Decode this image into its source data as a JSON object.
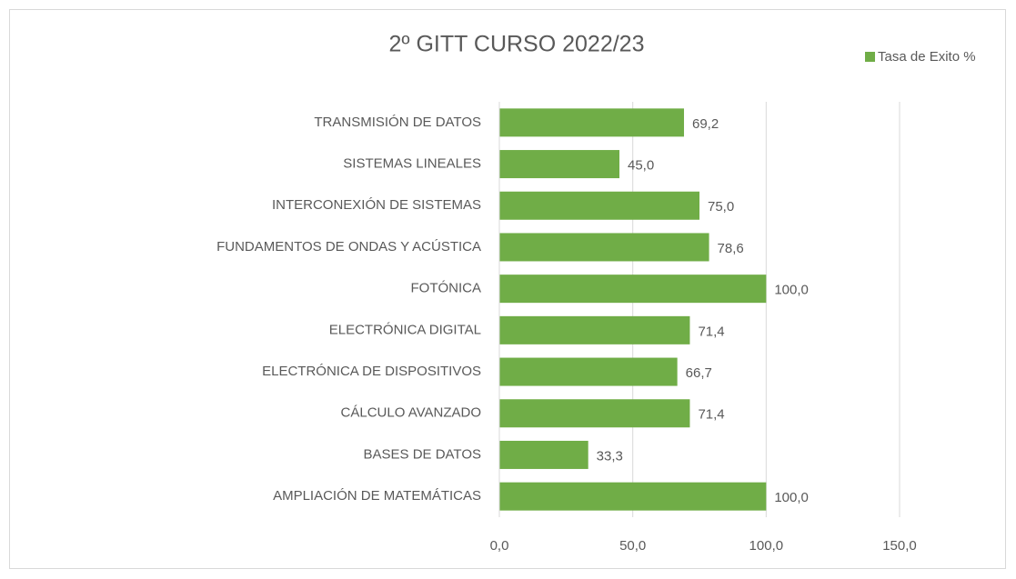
{
  "chart_data": {
    "type": "bar",
    "orientation": "horizontal",
    "title": "2º GITT CURSO 2022/23",
    "categories": [
      "TRANSMISIÓN DE DATOS",
      "SISTEMAS LINEALES",
      "INTERCONEXIÓN DE SISTEMAS",
      "FUNDAMENTOS DE ONDAS Y ACÚSTICA",
      "FOTÓNICA",
      "ELECTRÓNICA DIGITAL",
      "ELECTRÓNICA DE DISPOSITIVOS",
      "CÁLCULO AVANZADO",
      "BASES DE DATOS",
      "AMPLIACIÓN DE MATEMÁTICAS"
    ],
    "series": [
      {
        "name": "Tasa de Exito %",
        "color": "#70ad47",
        "values": [
          69.2,
          45.0,
          75.0,
          78.6,
          100.0,
          71.4,
          66.7,
          71.4,
          33.3,
          100.0
        ],
        "value_labels": [
          "69,2",
          "45,0",
          "75,0",
          "78,6",
          "100,0",
          "71,4",
          "66,7",
          "71,4",
          "33,3",
          "100,0"
        ]
      }
    ],
    "xlim": [
      0,
      150
    ],
    "xticks": [
      {
        "value": 0,
        "label": "0,0"
      },
      {
        "value": 50,
        "label": "50,0"
      },
      {
        "value": 100,
        "label": "100,0"
      },
      {
        "value": 150,
        "label": "150,0"
      }
    ],
    "grid": true,
    "legend": "top-right"
  }
}
